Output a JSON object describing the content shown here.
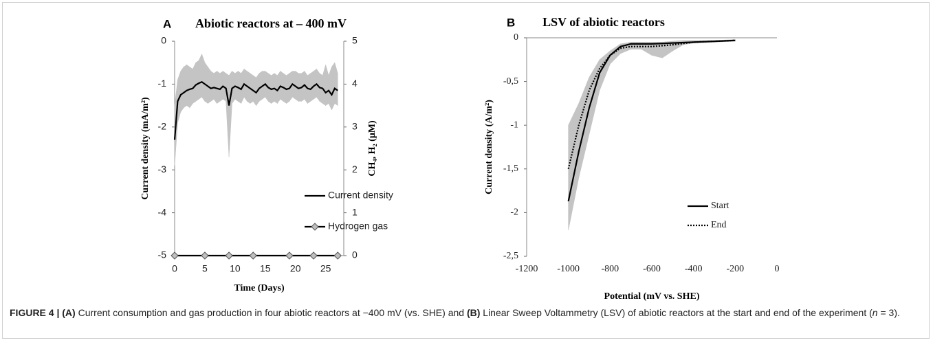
{
  "chart_data": [
    {
      "type": "line",
      "panel_label": "A",
      "title": "Abiotic reactors at – 400 mV",
      "xlabel": "Time (Days)",
      "ylabel": "Current density (mA/m²)",
      "y2label": "CH₄, H₂ (μM)",
      "xlim": [
        0,
        28
      ],
      "xticks": [
        0,
        5,
        10,
        15,
        20,
        25
      ],
      "ylim": [
        -5,
        0
      ],
      "yticks": [
        -5,
        -4,
        -3,
        -2,
        -1,
        0
      ],
      "y2lim": [
        0,
        5
      ],
      "y2ticks": [
        0,
        1,
        2,
        3,
        4,
        5
      ],
      "legend": "lower right",
      "band": {
        "color": "#c4c4c4",
        "x": [
          0,
          0.5,
          1,
          1.5,
          2,
          2.5,
          3,
          3.5,
          4,
          4.5,
          5,
          5.5,
          6,
          6.5,
          7,
          7.5,
          8,
          8.5,
          9,
          9.5,
          10,
          10.5,
          11,
          11.5,
          12,
          12.5,
          13,
          13.5,
          14,
          14.5,
          15,
          15.5,
          16,
          16.5,
          17,
          17.5,
          18,
          18.5,
          19,
          19.5,
          20,
          20.5,
          21,
          21.5,
          22,
          22.5,
          23,
          23.5,
          24,
          24.5,
          25,
          25.5,
          26,
          26.5,
          27
        ],
        "lower": [
          -2.9,
          -1.9,
          -1.65,
          -1.55,
          -1.5,
          -1.55,
          -1.45,
          -1.4,
          -1.35,
          -1.3,
          -1.4,
          -1.45,
          -1.4,
          -1.35,
          -1.45,
          -1.4,
          -1.35,
          -1.4,
          -2.7,
          -1.45,
          -1.35,
          -1.4,
          -1.45,
          -1.3,
          -1.4,
          -1.45,
          -1.4,
          -1.5,
          -1.4,
          -1.35,
          -1.3,
          -1.4,
          -1.45,
          -1.4,
          -1.45,
          -1.35,
          -1.4,
          -1.45,
          -1.4,
          -1.3,
          -1.35,
          -1.4,
          -1.4,
          -1.35,
          -1.45,
          -1.4,
          -1.35,
          -1.3,
          -1.4,
          -1.45,
          -1.5,
          -1.45,
          -1.6,
          -1.45,
          -1.5
        ],
        "upper": [
          -1.5,
          -0.9,
          -0.7,
          -0.6,
          -0.55,
          -0.6,
          -0.65,
          -0.5,
          -0.45,
          -0.3,
          -0.5,
          -0.6,
          -0.7,
          -0.75,
          -0.7,
          -0.75,
          -0.7,
          -0.75,
          -0.8,
          -0.7,
          -0.75,
          -0.7,
          -0.75,
          -0.65,
          -0.7,
          -0.75,
          -0.8,
          -0.85,
          -0.75,
          -0.7,
          -0.7,
          -0.75,
          -0.8,
          -0.75,
          -0.8,
          -0.7,
          -0.75,
          -0.8,
          -0.75,
          -0.7,
          -0.7,
          -0.75,
          -0.75,
          -0.7,
          -0.8,
          -0.75,
          -0.7,
          -0.65,
          -0.75,
          -0.8,
          -0.55,
          -0.8,
          -0.6,
          -0.5,
          -0.75
        ]
      },
      "series": [
        {
          "name": "Current density",
          "color": "#000000",
          "dash": "solid",
          "x": [
            0,
            0.5,
            1,
            1.5,
            2,
            2.5,
            3,
            3.5,
            4,
            4.5,
            5,
            5.5,
            6,
            6.5,
            7,
            7.5,
            8,
            8.5,
            9,
            9.5,
            10,
            10.5,
            11,
            11.5,
            12,
            12.5,
            13,
            13.5,
            14,
            14.5,
            15,
            15.5,
            16,
            16.5,
            17,
            17.5,
            18,
            18.5,
            19,
            19.5,
            20,
            20.5,
            21,
            21.5,
            22,
            22.5,
            23,
            23.5,
            24,
            24.5,
            25,
            25.5,
            26,
            26.5,
            27
          ],
          "values": [
            -2.3,
            -1.4,
            -1.25,
            -1.2,
            -1.15,
            -1.12,
            -1.1,
            -1.02,
            -0.98,
            -0.95,
            -1.0,
            -1.05,
            -1.1,
            -1.08,
            -1.1,
            -1.12,
            -1.05,
            -1.1,
            -1.5,
            -1.1,
            -1.05,
            -1.08,
            -1.12,
            -1.0,
            -1.05,
            -1.1,
            -1.15,
            -1.2,
            -1.1,
            -1.05,
            -1.0,
            -1.08,
            -1.12,
            -1.1,
            -1.15,
            -1.05,
            -1.08,
            -1.12,
            -1.1,
            -1.0,
            -1.05,
            -1.1,
            -1.08,
            -1.02,
            -1.1,
            -1.12,
            -1.05,
            -1.0,
            -1.08,
            -1.1,
            -1.2,
            -1.15,
            -1.25,
            -1.1,
            -1.15
          ]
        },
        {
          "name": "Hydrogen gas",
          "color": "#000000",
          "dash": "solid",
          "marker": "diamond",
          "marker_color": "#bfbfbf",
          "axis": "y2",
          "x": [
            0,
            5,
            9,
            13,
            19,
            23,
            27
          ],
          "values": [
            0,
            0,
            0,
            0,
            0,
            0,
            0
          ]
        }
      ]
    },
    {
      "type": "line",
      "panel_label": "B",
      "title": "LSV of abiotic reactors",
      "xlabel": "Potential (mV vs. SHE)",
      "ylabel": "Current density (A/m²)",
      "xlim": [
        -1200,
        0
      ],
      "xticks": [
        -1200,
        -1000,
        -800,
        -600,
        -400,
        -200,
        0
      ],
      "ylim": [
        -2.5,
        0
      ],
      "yticks": [
        0,
        {
          "value": -0.5,
          "label": "-0,5"
        },
        -1,
        {
          "value": -1.5,
          "label": "-1,5"
        },
        -2,
        {
          "value": -2.5,
          "label": "-2,5"
        }
      ],
      "legend": "right",
      "band": {
        "color": "#c4c4c4",
        "x": [
          -1000,
          -950,
          -900,
          -850,
          -800,
          -750,
          -700,
          -650,
          -600,
          -550,
          -500,
          -450,
          -400,
          -300,
          -200
        ],
        "lower": [
          -2.2,
          -1.6,
          -1.1,
          -0.6,
          -0.3,
          -0.18,
          -0.13,
          -0.13,
          -0.2,
          -0.23,
          -0.15,
          -0.08,
          -0.06,
          -0.05,
          -0.04
        ],
        "upper": [
          -1.0,
          -0.75,
          -0.45,
          -0.25,
          -0.15,
          -0.07,
          -0.05,
          -0.05,
          -0.05,
          -0.05,
          -0.04,
          -0.03,
          -0.03,
          -0.03,
          -0.02
        ]
      },
      "series": [
        {
          "name": "Start",
          "color": "#000000",
          "dash": "solid",
          "x": [
            -1000,
            -950,
            -900,
            -850,
            -800,
            -750,
            -700,
            -600,
            -500,
            -400,
            -300,
            -200
          ],
          "values": [
            -1.87,
            -1.3,
            -0.8,
            -0.4,
            -0.2,
            -0.1,
            -0.07,
            -0.07,
            -0.06,
            -0.05,
            -0.04,
            -0.03
          ]
        },
        {
          "name": "End",
          "color": "#000000",
          "dash": "dotted",
          "x": [
            -1000,
            -950,
            -900,
            -850,
            -800,
            -750,
            -700,
            -600,
            -500,
            -400,
            -300,
            -200
          ],
          "values": [
            -1.5,
            -1.0,
            -0.6,
            -0.35,
            -0.2,
            -0.12,
            -0.1,
            -0.1,
            -0.08,
            -0.05,
            -0.04,
            -0.03
          ]
        }
      ]
    }
  ],
  "caption": [
    "FIGURE 4 | ",
    "(A)",
    " Current consumption and gas production in four abiotic reactors at −400 mV (vs. SHE) and ",
    "(B)",
    " Linear Sweep Voltammetry (LSV) of abiotic reactors at the start and end of the experiment (",
    "n",
    " = 3)."
  ]
}
